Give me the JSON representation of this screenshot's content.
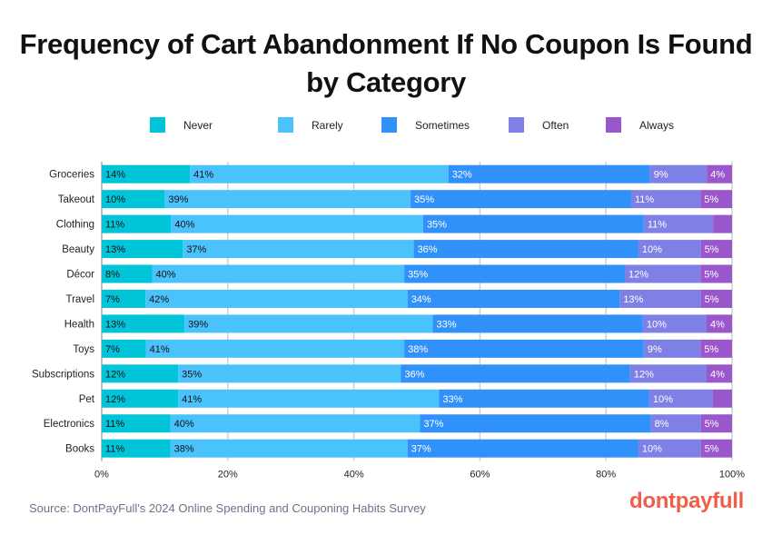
{
  "chart_data": {
    "type": "bar",
    "orientation": "horizontal",
    "stacked": true,
    "title": "Frequency of Cart Abandonment If No Coupon Is Found by Category",
    "categories": [
      "Groceries",
      "Takeout",
      "Clothing",
      "Beauty",
      "Décor",
      "Travel",
      "Health",
      "Toys",
      "Subscriptions",
      "Pet",
      "Electronics",
      "Books"
    ],
    "series": [
      {
        "name": "Never",
        "color": "#00C4D8",
        "values": [
          14,
          10,
          11,
          13,
          8,
          7,
          13,
          7,
          12,
          12,
          11,
          11
        ]
      },
      {
        "name": "Rarely",
        "color": "#4AC3FD",
        "values": [
          41,
          39,
          40,
          37,
          40,
          42,
          39,
          41,
          35,
          41,
          40,
          38
        ]
      },
      {
        "name": "Sometimes",
        "color": "#3191FA",
        "values": [
          32,
          35,
          35,
          36,
          35,
          34,
          33,
          38,
          36,
          33,
          37,
          37
        ]
      },
      {
        "name": "Often",
        "color": "#7E80E6",
        "values": [
          9,
          11,
          11,
          10,
          12,
          13,
          10,
          9,
          12,
          10,
          8,
          10
        ]
      },
      {
        "name": "Always",
        "color": "#9A57CC",
        "values": [
          4,
          5,
          3,
          5,
          5,
          5,
          4,
          5,
          4,
          3,
          5,
          5
        ]
      }
    ],
    "xlim": [
      0,
      100
    ],
    "xticks": [
      "0%",
      "20%",
      "40%",
      "60%",
      "80%",
      "100%"
    ],
    "grid": true,
    "legend": "top"
  },
  "source": "Source: DontPayFull's 2024 Online Spending and Couponing Habits Survey",
  "logo": "dontpayfull"
}
